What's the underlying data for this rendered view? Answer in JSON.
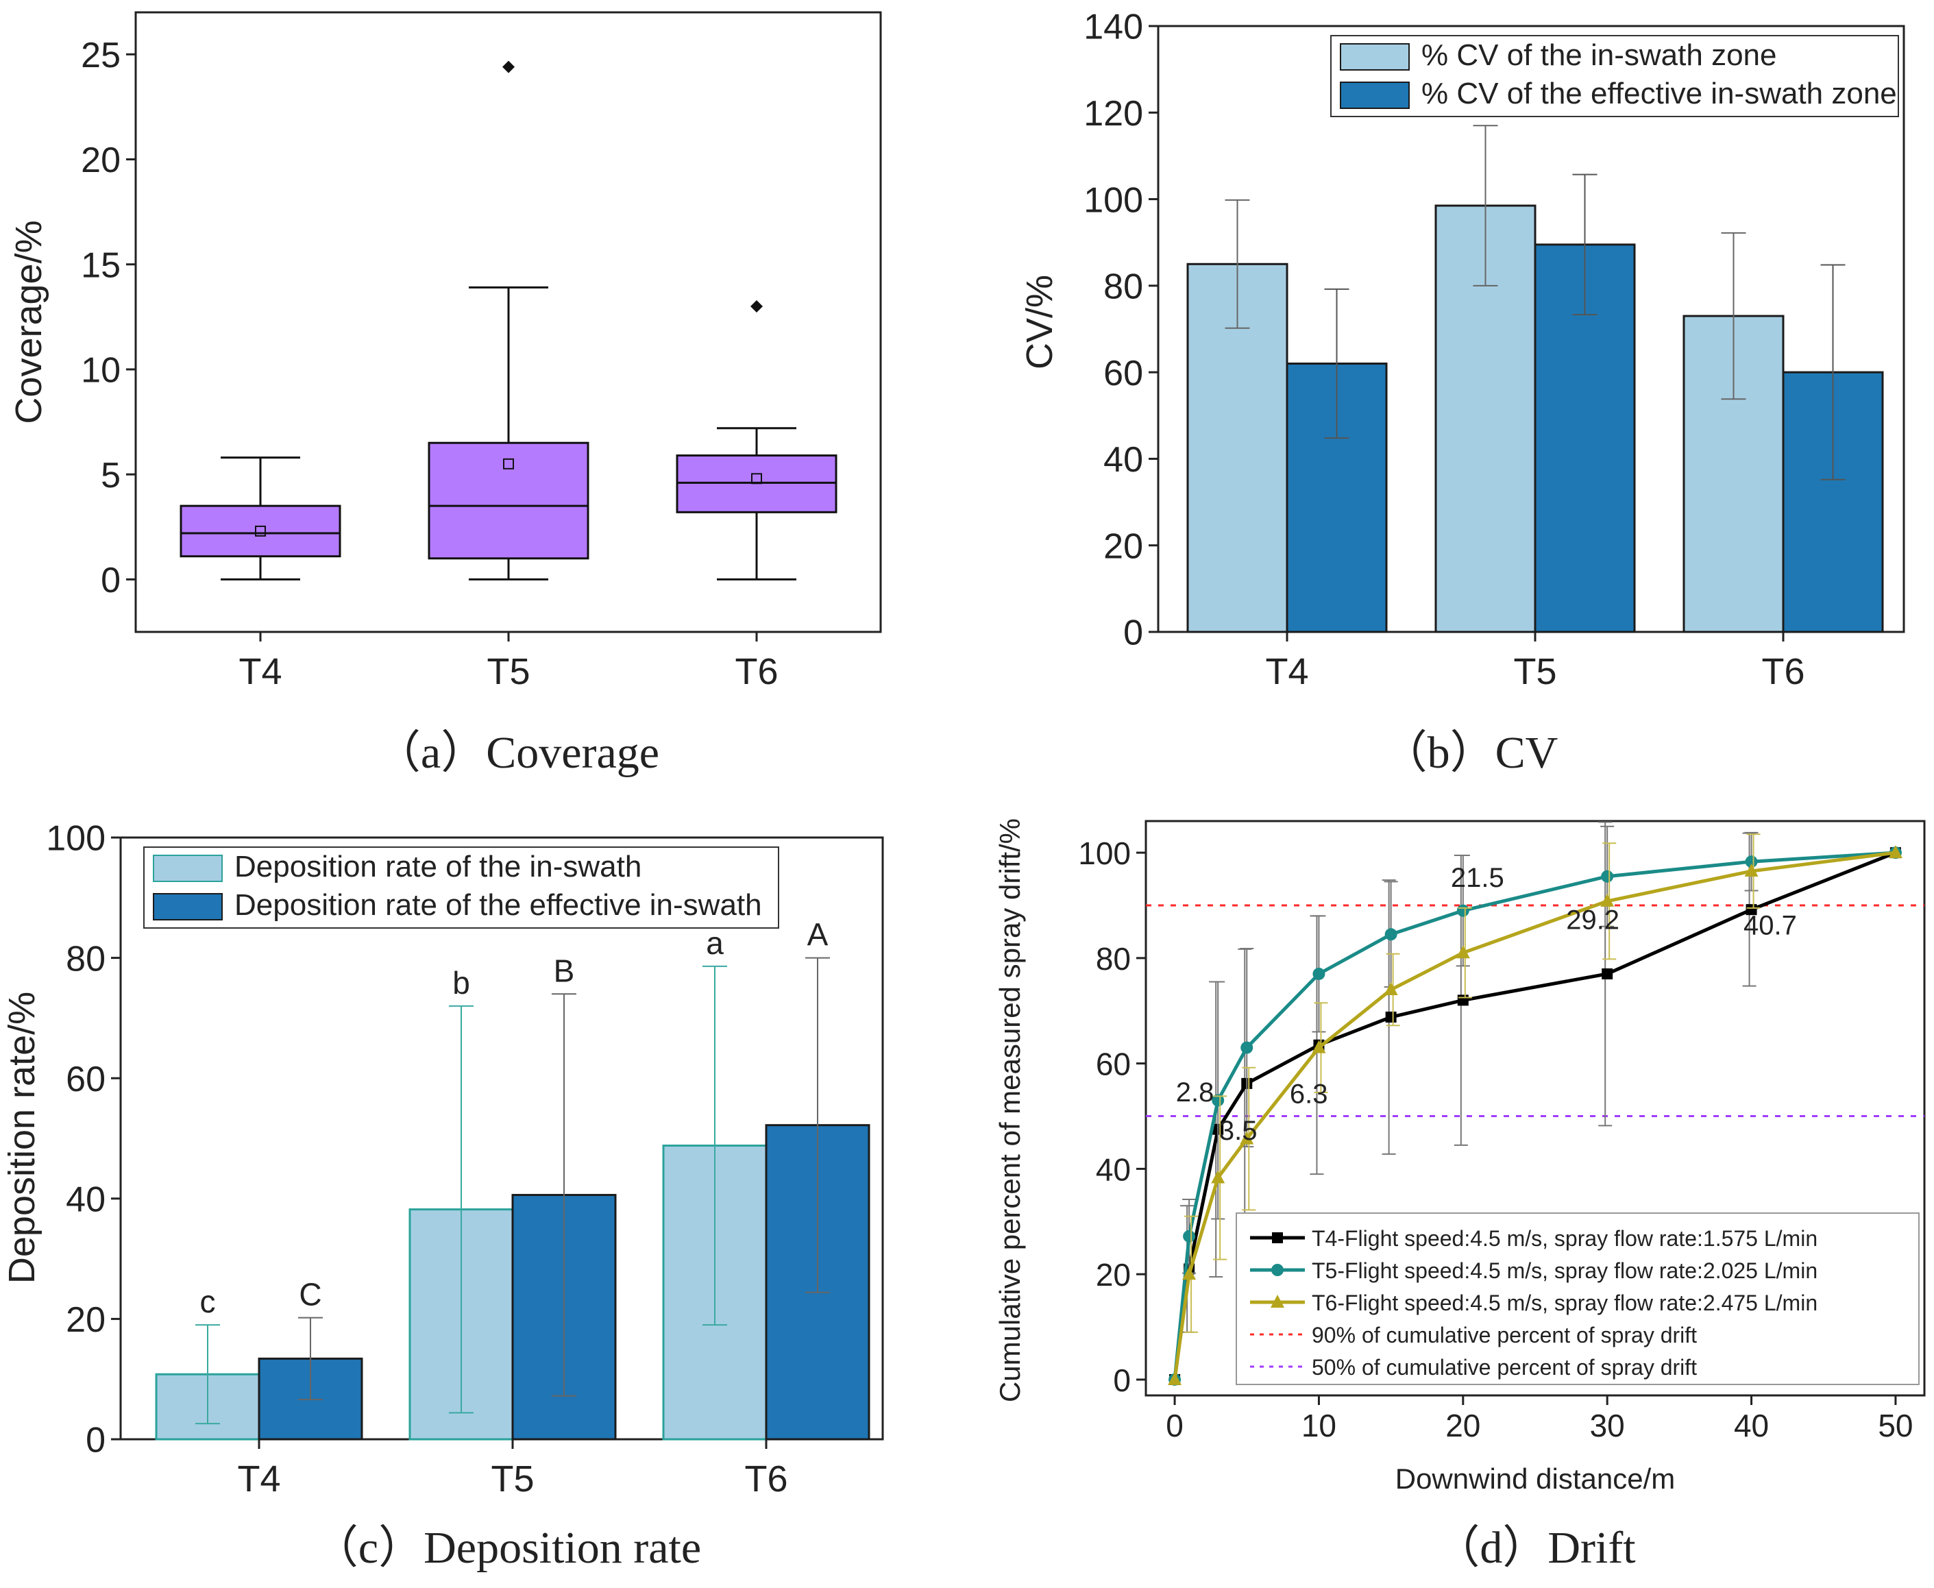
{
  "chart_data": [
    {
      "id": "a",
      "type": "box",
      "caption": "（a）Coverage",
      "ylabel": "Coverage/%",
      "ylim": [
        -2.5,
        27
      ],
      "yticks": [
        0,
        5,
        10,
        15,
        20,
        25
      ],
      "categories": [
        "T4",
        "T5",
        "T6"
      ],
      "fill_color": "#b57bff",
      "boxes": [
        {
          "min": 0,
          "q1": 1.1,
          "median": 2.2,
          "q3": 3.5,
          "max": 5.8,
          "mean": 2.3,
          "outliers": []
        },
        {
          "min": 0,
          "q1": 1.0,
          "median": 3.5,
          "q3": 6.5,
          "max": 13.9,
          "mean": 5.5,
          "outliers": [
            24.4
          ]
        },
        {
          "min": 0,
          "q1": 3.2,
          "median": 4.6,
          "q3": 5.9,
          "max": 7.2,
          "mean": 4.8,
          "outliers": [
            13.0
          ]
        }
      ]
    },
    {
      "id": "b",
      "type": "bar",
      "caption": "（b）CV",
      "ylabel": "CV/%",
      "ylim": [
        0,
        140
      ],
      "yticks": [
        0,
        20,
        40,
        60,
        80,
        100,
        120,
        140
      ],
      "categories": [
        "T4",
        "T5",
        "T6"
      ],
      "series": [
        {
          "name": "% CV of the in-swath zone",
          "color": "#a6cee3",
          "values": [
            85,
            98.5,
            73
          ],
          "errors": [
            14.8,
            18.5,
            19.2
          ]
        },
        {
          "name": "% CV of the effective in-swath zone",
          "color": "#1f78b4",
          "values": [
            62,
            89.5,
            60
          ],
          "errors": [
            17.2,
            16.2,
            24.8
          ]
        }
      ]
    },
    {
      "id": "c",
      "type": "bar",
      "caption": "（c）Deposition rate",
      "ylabel": "Deposition rate/%",
      "ylim": [
        0,
        100
      ],
      "yticks": [
        0,
        20,
        40,
        60,
        80,
        100
      ],
      "categories": [
        "T4",
        "T5",
        "T6"
      ],
      "series": [
        {
          "name": "Deposition rate of the in-swath",
          "color": "#a6cee3",
          "values": [
            10.8,
            38.2,
            48.8
          ],
          "errors": [
            8.2,
            33.8,
            29.8
          ],
          "letters": [
            "c",
            "b",
            "a"
          ]
        },
        {
          "name": "Deposition rate of the effective in-swath",
          "color": "#2075b4",
          "values": [
            13.4,
            40.6,
            52.2
          ],
          "errors": [
            6.8,
            33.4,
            27.8
          ],
          "letters": [
            "C",
            "B",
            "A"
          ]
        }
      ]
    },
    {
      "id": "d",
      "type": "line",
      "caption": "（d）Drift",
      "xlabel": "Downwind distance/m",
      "ylabel": "Cumulative percent of measured spray drift/%",
      "xlim": [
        -2,
        52
      ],
      "ylim": [
        -3,
        106
      ],
      "xticks": [
        0,
        10,
        20,
        30,
        40,
        50
      ],
      "yticks": [
        0,
        20,
        40,
        60,
        80,
        100
      ],
      "x": [
        0,
        1,
        3,
        5,
        10,
        15,
        20,
        30,
        40,
        50
      ],
      "series": [
        {
          "name": "T4-Flight speed:4.5 m/s, spray flow rate:1.575 L/min",
          "color": "#000000",
          "marker": "square",
          "values": [
            0,
            21,
            47.5,
            56.2,
            63.5,
            68.8,
            72,
            77,
            89.2,
            100
          ],
          "errors": [
            0,
            12,
            28,
            25.5,
            24.5,
            26,
            27.5,
            28.8,
            14.5,
            0
          ]
        },
        {
          "name": "T5-Flight speed:4.5 m/s, spray flow rate:2.025 L/min",
          "color": "#1a8b88",
          "marker": "circle",
          "values": [
            0,
            27.2,
            53,
            63,
            77,
            84.5,
            89,
            95.5,
            98.3,
            100
          ],
          "errors": [
            0,
            7,
            22.5,
            18.8,
            11,
            10,
            10.5,
            9.5,
            5.5,
            0
          ]
        },
        {
          "name": "T6-Flight speed:4.5 m/s, spray flow rate:2.475 L/min",
          "color": "#b5a51c",
          "marker": "triangle",
          "values": [
            0,
            20,
            38.3,
            45.7,
            63,
            74,
            81,
            90.8,
            96.5,
            100
          ],
          "errors": [
            0,
            11,
            15.5,
            13.5,
            8.5,
            6.8,
            8.5,
            11,
            7,
            0
          ]
        }
      ],
      "reference_lines": [
        {
          "y": 90,
          "color": "#ff2a2a",
          "label": "90% of cumulative percent of spray drift"
        },
        {
          "y": 50,
          "color": "#a23cff",
          "label": "50% of cumulative percent of spray drift"
        }
      ],
      "annotations": [
        {
          "text": "2.8",
          "x": 1.4,
          "y": 52.8
        },
        {
          "text": "3.5",
          "x": 4.4,
          "y": 45.5
        },
        {
          "text": "6.3",
          "x": 9.3,
          "y": 52.5
        },
        {
          "text": "21.5",
          "x": 21.0,
          "y": 93.5
        },
        {
          "text": "29.2",
          "x": 29.0,
          "y": 85.5
        },
        {
          "text": "40.7",
          "x": 41.3,
          "y": 84.5
        }
      ]
    }
  ]
}
